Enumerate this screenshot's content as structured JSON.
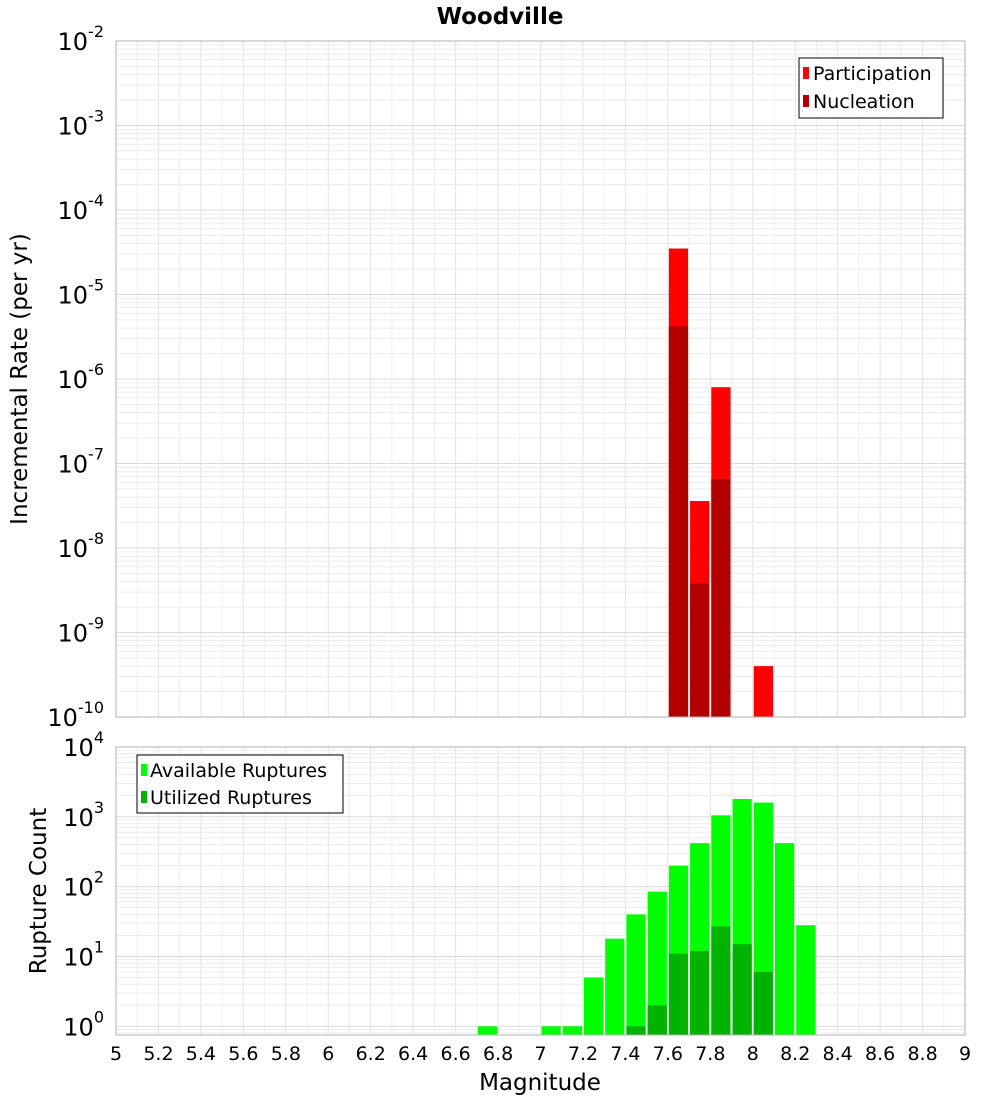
{
  "chart_data": [
    {
      "type": "bar",
      "title": "Woodville",
      "xlabel": "Magnitude",
      "ylabel": "Incremental Rate (per yr)",
      "yscale": "log",
      "xlim": [
        5,
        9
      ],
      "ylim": [
        1e-10,
        0.01
      ],
      "grid": true,
      "bar_width": 0.1,
      "y_ticks": [
        {
          "base": "10",
          "exp": "-10",
          "value": 1e-10
        },
        {
          "base": "10",
          "exp": "-9",
          "value": 1e-09
        },
        {
          "base": "10",
          "exp": "-8",
          "value": 1e-08
        },
        {
          "base": "10",
          "exp": "-7",
          "value": 1e-07
        },
        {
          "base": "10",
          "exp": "-6",
          "value": 1e-06
        },
        {
          "base": "10",
          "exp": "-5",
          "value": 1e-05
        },
        {
          "base": "10",
          "exp": "-4",
          "value": 0.0001
        },
        {
          "base": "10",
          "exp": "-3",
          "value": 0.001
        },
        {
          "base": "10",
          "exp": "-2",
          "value": 0.01
        }
      ],
      "legend": {
        "position": "top-right",
        "entries": [
          {
            "name": "Participation",
            "color": "#ff0000"
          },
          {
            "name": "Nucleation",
            "color": "#b30000"
          }
        ]
      },
      "series": [
        {
          "name": "Participation",
          "color": "#ff0000",
          "points": [
            {
              "x": 7.65,
              "y": 3.5e-05
            },
            {
              "x": 7.75,
              "y": 3.6e-08
            },
            {
              "x": 7.85,
              "y": 8e-07
            },
            {
              "x": 8.05,
              "y": 4e-10
            }
          ]
        },
        {
          "name": "Nucleation",
          "color": "#b30000",
          "points": [
            {
              "x": 7.65,
              "y": 4.2e-06
            },
            {
              "x": 7.75,
              "y": 3.8e-09
            },
            {
              "x": 7.85,
              "y": 6.5e-08
            }
          ]
        }
      ]
    },
    {
      "type": "bar",
      "xlabel": "Magnitude",
      "ylabel": "Rupture Count",
      "yscale": "log",
      "xlim": [
        5,
        9
      ],
      "ylim": [
        0.75,
        10000
      ],
      "grid": true,
      "bar_width": 0.1,
      "x_ticks": [
        "5",
        "5.2",
        "5.4",
        "5.6",
        "5.8",
        "6",
        "6.2",
        "6.4",
        "6.6",
        "6.8",
        "7",
        "7.2",
        "7.4",
        "7.6",
        "7.8",
        "8",
        "8.2",
        "8.4",
        "8.6",
        "8.8",
        "9"
      ],
      "y_ticks": [
        {
          "base": "10",
          "exp": "0",
          "value": 1
        },
        {
          "base": "10",
          "exp": "1",
          "value": 10
        },
        {
          "base": "10",
          "exp": "2",
          "value": 100
        },
        {
          "base": "10",
          "exp": "3",
          "value": 1000
        },
        {
          "base": "10",
          "exp": "4",
          "value": 10000
        }
      ],
      "legend": {
        "position": "top-left",
        "entries": [
          {
            "name": "Available Ruptures",
            "color": "#00ff00"
          },
          {
            "name": "Utilized Ruptures",
            "color": "#00b300"
          }
        ]
      },
      "series": [
        {
          "name": "Available Ruptures",
          "color": "#00ff00",
          "points": [
            {
              "x": 6.75,
              "y": 1
            },
            {
              "x": 7.05,
              "y": 1
            },
            {
              "x": 7.15,
              "y": 1
            },
            {
              "x": 7.25,
              "y": 5
            },
            {
              "x": 7.35,
              "y": 18
            },
            {
              "x": 7.45,
              "y": 40
            },
            {
              "x": 7.55,
              "y": 85
            },
            {
              "x": 7.65,
              "y": 200
            },
            {
              "x": 7.75,
              "y": 420
            },
            {
              "x": 7.85,
              "y": 1050
            },
            {
              "x": 7.95,
              "y": 1800
            },
            {
              "x": 8.05,
              "y": 1600
            },
            {
              "x": 8.15,
              "y": 420
            },
            {
              "x": 8.25,
              "y": 28
            }
          ]
        },
        {
          "name": "Utilized Ruptures",
          "color": "#00b300",
          "points": [
            {
              "x": 7.45,
              "y": 1
            },
            {
              "x": 7.55,
              "y": 2
            },
            {
              "x": 7.65,
              "y": 11
            },
            {
              "x": 7.75,
              "y": 12
            },
            {
              "x": 7.85,
              "y": 27
            },
            {
              "x": 7.95,
              "y": 15
            },
            {
              "x": 8.05,
              "y": 6
            }
          ]
        }
      ]
    }
  ]
}
